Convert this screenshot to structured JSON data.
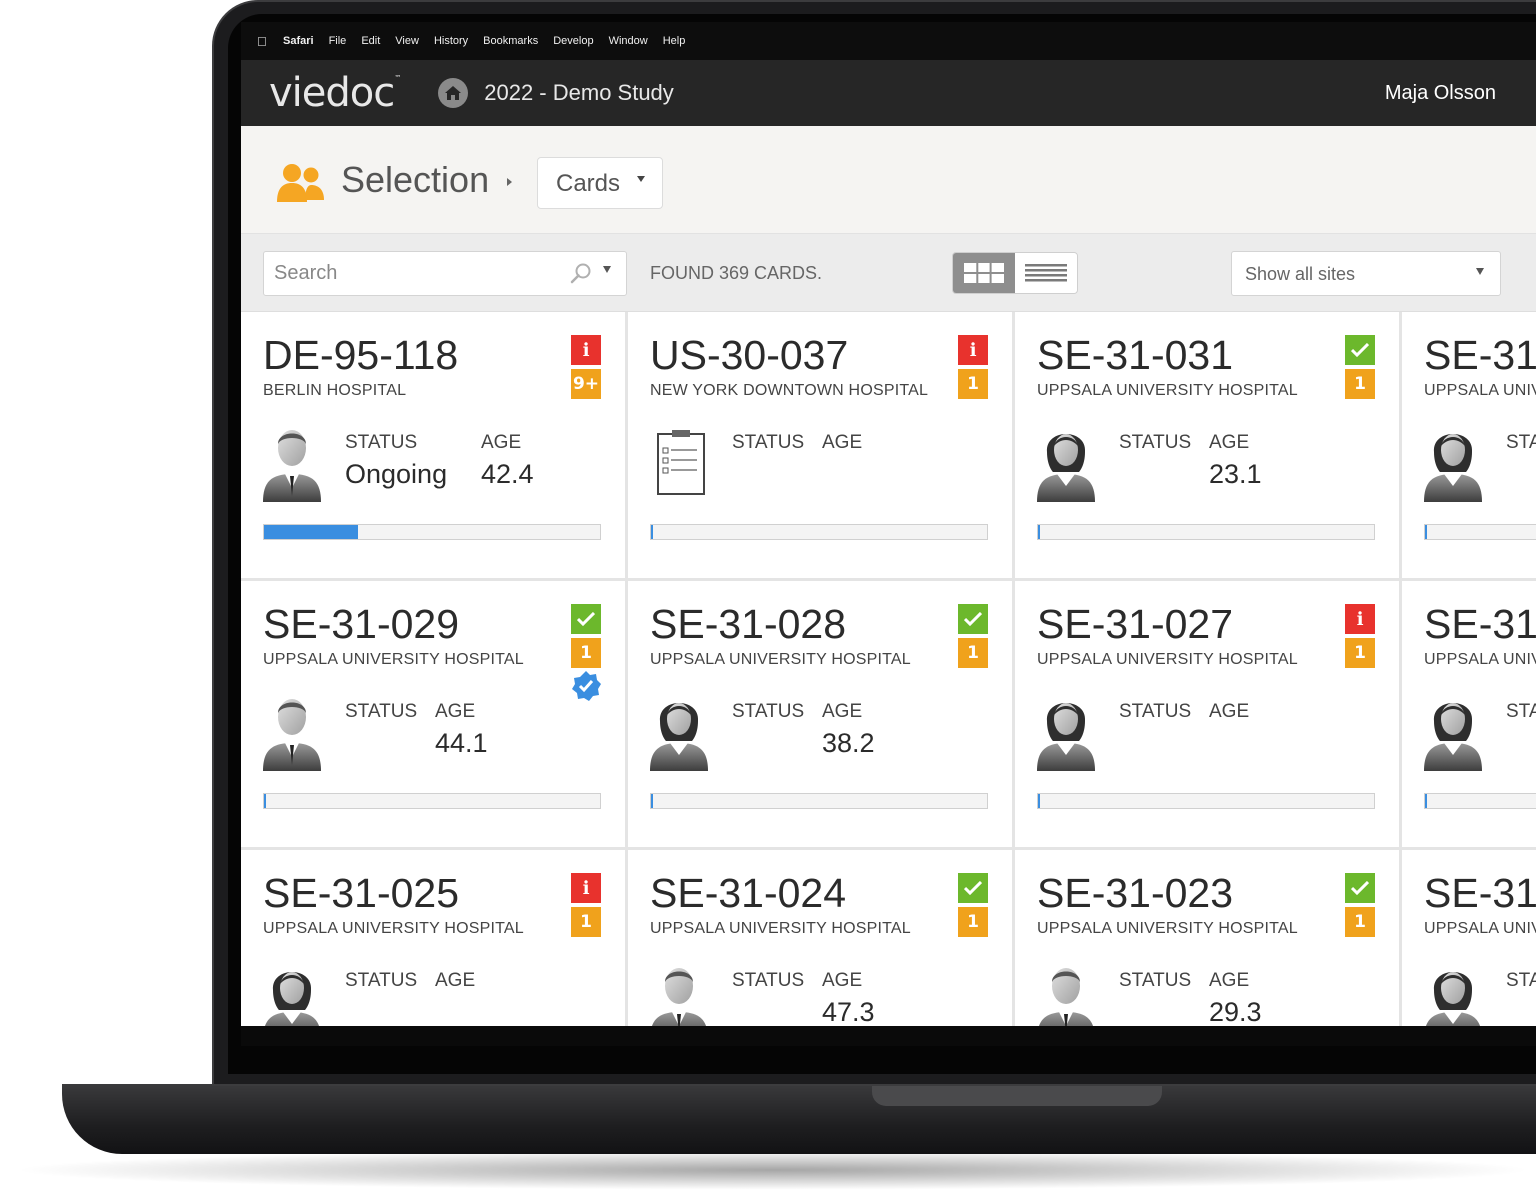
{
  "menubar": {
    "items": [
      "Safari",
      "File",
      "Edit",
      "View",
      "History",
      "Bookmarks",
      "Develop",
      "Window",
      "Help"
    ]
  },
  "header": {
    "logo": "viedoc",
    "logo_mark": "™",
    "study_title": "2022 - Demo Study",
    "user_name": "Maja Olsson"
  },
  "selection": {
    "title": "Selection",
    "view_dropdown": "Cards"
  },
  "toolbar": {
    "search_placeholder": "Search",
    "found_text": "FOUND 369 CARDS.",
    "sites_dropdown": "Show all sites"
  },
  "labels": {
    "status": "STATUS",
    "age": "AGE"
  },
  "colors": {
    "accent_blue": "#3a8ee0",
    "badge_red": "#e8322d",
    "badge_green": "#6cb82c",
    "badge_orange": "#f0a21c",
    "users_icon": "#f5a623"
  },
  "cards": [
    {
      "id": "DE-95-118",
      "site": "BERLIN HOSPITAL",
      "avatar": "male-icon",
      "status": "Ongoing",
      "age": "42.4",
      "badge_top": "info",
      "badge_count": "9+",
      "verified": false,
      "progress": 0.28
    },
    {
      "id": "US-30-037",
      "site": "NEW YORK DOWNTOWN HOSPITAL",
      "avatar": "clipboard-icon",
      "status": "",
      "age": "",
      "badge_top": "info",
      "badge_count": "1",
      "verified": false,
      "progress": 0.005
    },
    {
      "id": "SE-31-031",
      "site": "UPPSALA UNIVERSITY HOSPITAL",
      "avatar": "female-icon",
      "status": "",
      "age": "23.1",
      "badge_top": "check",
      "badge_count": "1",
      "verified": false,
      "progress": 0.005
    },
    {
      "id": "SE-31-",
      "site": "UPPSALA UNIV",
      "avatar": "female-icon",
      "status": "",
      "age": "",
      "badge_top": "",
      "badge_count": "",
      "verified": false,
      "progress": 0.005,
      "partial": true
    },
    {
      "id": "SE-31-029",
      "site": "UPPSALA UNIVERSITY HOSPITAL",
      "avatar": "male-icon",
      "status": "",
      "age": "44.1",
      "badge_top": "check",
      "badge_count": "1",
      "verified": true,
      "progress": 0.005
    },
    {
      "id": "SE-31-028",
      "site": "UPPSALA UNIVERSITY HOSPITAL",
      "avatar": "female-icon",
      "status": "",
      "age": "38.2",
      "badge_top": "check",
      "badge_count": "1",
      "verified": false,
      "progress": 0.005
    },
    {
      "id": "SE-31-027",
      "site": "UPPSALA UNIVERSITY HOSPITAL",
      "avatar": "female-icon",
      "status": "",
      "age": "",
      "badge_top": "info",
      "badge_count": "1",
      "verified": false,
      "progress": 0.005
    },
    {
      "id": "SE-31-",
      "site": "UPPSALA UNIV",
      "avatar": "female-icon",
      "status": "",
      "age": "",
      "badge_top": "",
      "badge_count": "",
      "verified": false,
      "progress": 0.005,
      "partial": true
    },
    {
      "id": "SE-31-025",
      "site": "UPPSALA UNIVERSITY HOSPITAL",
      "avatar": "female-icon",
      "status": "",
      "age": "",
      "badge_top": "info",
      "badge_count": "1",
      "verified": false,
      "progress": 0.005
    },
    {
      "id": "SE-31-024",
      "site": "UPPSALA UNIVERSITY HOSPITAL",
      "avatar": "male-icon",
      "status": "",
      "age": "47.3",
      "badge_top": "check",
      "badge_count": "1",
      "verified": false,
      "progress": 0.005
    },
    {
      "id": "SE-31-023",
      "site": "UPPSALA UNIVERSITY HOSPITAL",
      "avatar": "male-icon",
      "status": "",
      "age": "29.3",
      "badge_top": "check",
      "badge_count": "1",
      "verified": false,
      "progress": 0.005
    },
    {
      "id": "SE-31-",
      "site": "UPPSALA UNIV",
      "avatar": "female-icon",
      "status": "",
      "age": "",
      "badge_top": "",
      "badge_count": "",
      "verified": false,
      "progress": 0.005,
      "partial": true
    }
  ]
}
